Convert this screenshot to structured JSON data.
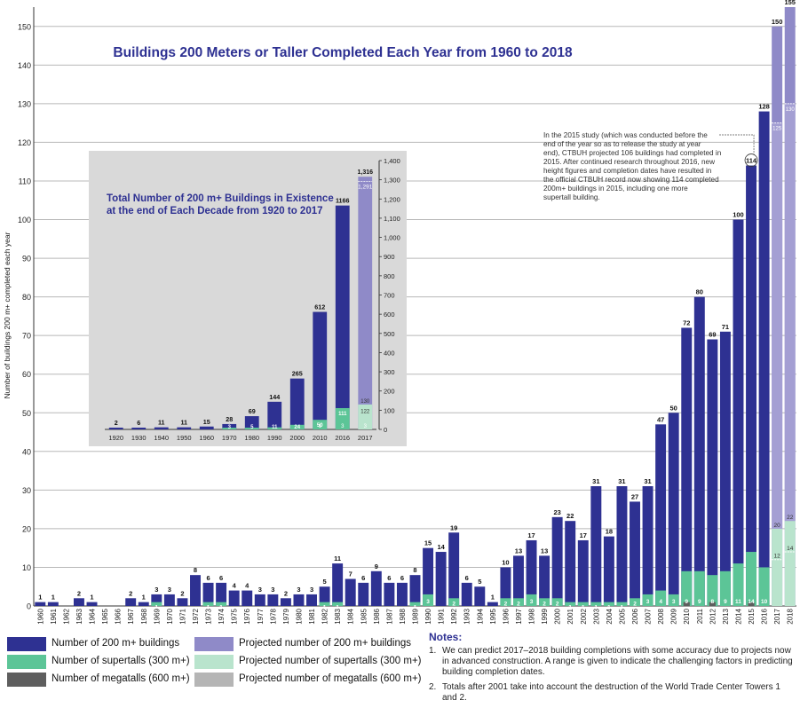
{
  "chart_data": [
    {
      "type": "bar",
      "title": "Buildings 200 Meters or Taller Completed Each Year from 1960 to 2018",
      "ylabel": "Number of buildings 200 m+ completed each year",
      "ylim": [
        0,
        155
      ],
      "yticks": [
        0,
        10,
        20,
        30,
        40,
        50,
        60,
        70,
        80,
        90,
        100,
        110,
        120,
        130,
        140,
        150
      ],
      "categories": [
        "1960",
        "1961",
        "1962",
        "1963",
        "1964",
        "1965",
        "1966",
        "1967",
        "1968",
        "1969",
        "1970",
        "1971",
        "1972",
        "1973",
        "1974",
        "1975",
        "1976",
        "1977",
        "1978",
        "1979",
        "1980",
        "1981",
        "1982",
        "1983",
        "1984",
        "1985",
        "1986",
        "1987",
        "1988",
        "1989",
        "1990",
        "1991",
        "1992",
        "1993",
        "1994",
        "1995",
        "1996",
        "1997",
        "1998",
        "1999",
        "2000",
        "2001",
        "2002",
        "2003",
        "2004",
        "2005",
        "2006",
        "2007",
        "2008",
        "2009",
        "2010",
        "2011",
        "2012",
        "2013",
        "2014",
        "2015",
        "2016",
        "2017",
        "2018"
      ],
      "series": [
        {
          "name": "Number of 200 m+ buildings",
          "values": [
            1,
            1,
            0,
            2,
            1,
            0,
            0,
            2,
            1,
            3,
            3,
            2,
            8,
            6,
            6,
            4,
            4,
            3,
            3,
            2,
            3,
            3,
            5,
            11,
            7,
            6,
            9,
            6,
            6,
            8,
            15,
            14,
            19,
            6,
            5,
            1,
            10,
            13,
            17,
            13,
            23,
            22,
            17,
            31,
            18,
            31,
            27,
            31,
            47,
            50,
            72,
            80,
            69,
            71,
            100,
            114,
            128,
            null,
            null
          ]
        },
        {
          "name": "Number of supertalls (300 m+)",
          "values": [
            0,
            0,
            0,
            0,
            0,
            0,
            0,
            0,
            0,
            1,
            0,
            0,
            0,
            1,
            1,
            0,
            0,
            0,
            0,
            0,
            0,
            0,
            1,
            1,
            0,
            0,
            0,
            0,
            0,
            1,
            3,
            0,
            2,
            0,
            0,
            0,
            2,
            2,
            3,
            2,
            2,
            1,
            1,
            1,
            1,
            1,
            2,
            3,
            4,
            3,
            9,
            9,
            8,
            9,
            11,
            14,
            10,
            null,
            null
          ]
        },
        {
          "name": "Number of megatalls (600 m+)",
          "values": [
            0,
            0,
            0,
            0,
            0,
            0,
            0,
            0,
            0,
            0,
            0,
            0,
            0,
            0,
            0,
            0,
            0,
            0,
            0,
            0,
            0,
            0,
            0,
            0,
            0,
            0,
            0,
            0,
            0,
            0,
            0,
            0,
            0,
            0,
            0,
            0,
            0,
            0,
            0,
            0,
            0,
            0,
            0,
            0,
            0,
            0,
            0,
            0,
            0,
            0,
            1,
            0,
            1,
            0,
            0,
            1,
            0,
            null,
            null
          ]
        },
        {
          "name": "Projected number of 200 m+ buildings",
          "values": [
            null,
            null,
            null,
            null,
            null,
            null,
            null,
            null,
            null,
            null,
            null,
            null,
            null,
            null,
            null,
            null,
            null,
            null,
            null,
            null,
            null,
            null,
            null,
            null,
            null,
            null,
            null,
            null,
            null,
            null,
            null,
            null,
            null,
            null,
            null,
            null,
            null,
            null,
            null,
            null,
            null,
            null,
            null,
            null,
            null,
            null,
            null,
            null,
            null,
            null,
            null,
            null,
            null,
            null,
            null,
            null,
            null,
            150,
            155
          ]
        },
        {
          "name": "Projected number of supertalls (300 m+)",
          "values": [
            null,
            null,
            null,
            null,
            null,
            null,
            null,
            null,
            null,
            null,
            null,
            null,
            null,
            null,
            null,
            null,
            null,
            null,
            null,
            null,
            null,
            null,
            null,
            null,
            null,
            null,
            null,
            null,
            null,
            null,
            null,
            null,
            null,
            null,
            null,
            null,
            null,
            null,
            null,
            null,
            null,
            null,
            null,
            null,
            null,
            null,
            null,
            null,
            null,
            null,
            null,
            null,
            null,
            null,
            null,
            null,
            null,
            20,
            22
          ]
        }
      ],
      "projection_ranges": [
        {
          "category": "2017",
          "low": 125,
          "high": 150,
          "super_low": 12,
          "super_high": 20
        },
        {
          "category": "2018",
          "low": 130,
          "high": 155,
          "super_low": 14,
          "super_high": 22
        }
      ],
      "annotations": [
        {
          "category": "2015",
          "label": "114",
          "text": "In the 2015 study (which was conducted before the end of the year so as to release the study at year end), CTBUH projected 106 buildings had completed in 2015. After continued research throughout 2016, new height figures and completion dates have resulted in the official CTBUH record now showing 114 completed 200m+ buildings in 2015, including one more supertall building."
        }
      ],
      "grid": true
    },
    {
      "type": "bar",
      "title": "Total Number of 200 m+ Buildings in Existence at the end of Each Decade from 1920 to 2017",
      "ylim": [
        0,
        1400
      ],
      "yticks": [
        0,
        100,
        200,
        300,
        400,
        500,
        600,
        700,
        800,
        900,
        1000,
        1100,
        1200,
        1300,
        1400
      ],
      "categories": [
        "1920",
        "1930",
        "1940",
        "1950",
        "1960",
        "1970",
        "1980",
        "1990",
        "2000",
        "2010",
        "2016",
        "2017"
      ],
      "series": [
        {
          "name": "Number of 200 m+ buildings",
          "values": [
            2,
            6,
            11,
            11,
            15,
            28,
            69,
            144,
            265,
            612,
            1166,
            null
          ]
        },
        {
          "name": "Number of supertalls (300 m+)",
          "values": [
            0,
            0,
            0,
            0,
            0,
            3,
            5,
            11,
            24,
            50,
            111,
            null
          ]
        },
        {
          "name": "Number of megatalls (600 m+)",
          "values": [
            0,
            0,
            0,
            0,
            0,
            0,
            0,
            0,
            0,
            1,
            3,
            null
          ]
        },
        {
          "name": "Projected number of 200 m+ buildings",
          "values": [
            null,
            null,
            null,
            null,
            null,
            null,
            null,
            null,
            null,
            null,
            null,
            1316
          ]
        },
        {
          "name": "Projected number of supertalls (300 m+)",
          "values": [
            null,
            null,
            null,
            null,
            null,
            null,
            null,
            null,
            null,
            null,
            null,
            130
          ]
        }
      ],
      "projection_range": {
        "category": "2017",
        "low": 1291,
        "high": 1316,
        "super_low": 122,
        "super_high": 130,
        "mega": 3
      },
      "grid": false
    }
  ],
  "legend": [
    {
      "label": "Number of 200 m+ buildings",
      "color": "#2e3192"
    },
    {
      "label": "Number of supertalls (300 m+)",
      "color": "#5cc597"
    },
    {
      "label": "Number of megatalls (600 m+)",
      "color": "#5e5e5e"
    },
    {
      "label": "Projected number of 200 m+ buildings",
      "color": "#8f8ac8"
    },
    {
      "label": "Projected number of supertalls (300 m+)",
      "color": "#b9e4cd"
    },
    {
      "label": "Projected number of megatalls (600 m+)",
      "color": "#b5b5b5"
    }
  ],
  "notes": {
    "title": "Notes:",
    "items": [
      {
        "num": "1.",
        "text": "We can predict 2017–2018 building completions with some accuracy due to projects now in advanced construction. A range is given to indicate the challenging factors in predicting building completion dates."
      },
      {
        "num": "2.",
        "text": "Totals after 2001 take into account the destruction of the World Trade Center Towers 1 and 2."
      }
    ]
  },
  "colors": {
    "buildings": "#2e3192",
    "supertall": "#5cc597",
    "megatall": "#5e5e5e",
    "projected": "#8f8ac8",
    "projected_supertall": "#b9e4cd",
    "projected_megatall": "#b5b5b5",
    "inset_background": "#d9d9d9",
    "title": "#2e3192"
  }
}
